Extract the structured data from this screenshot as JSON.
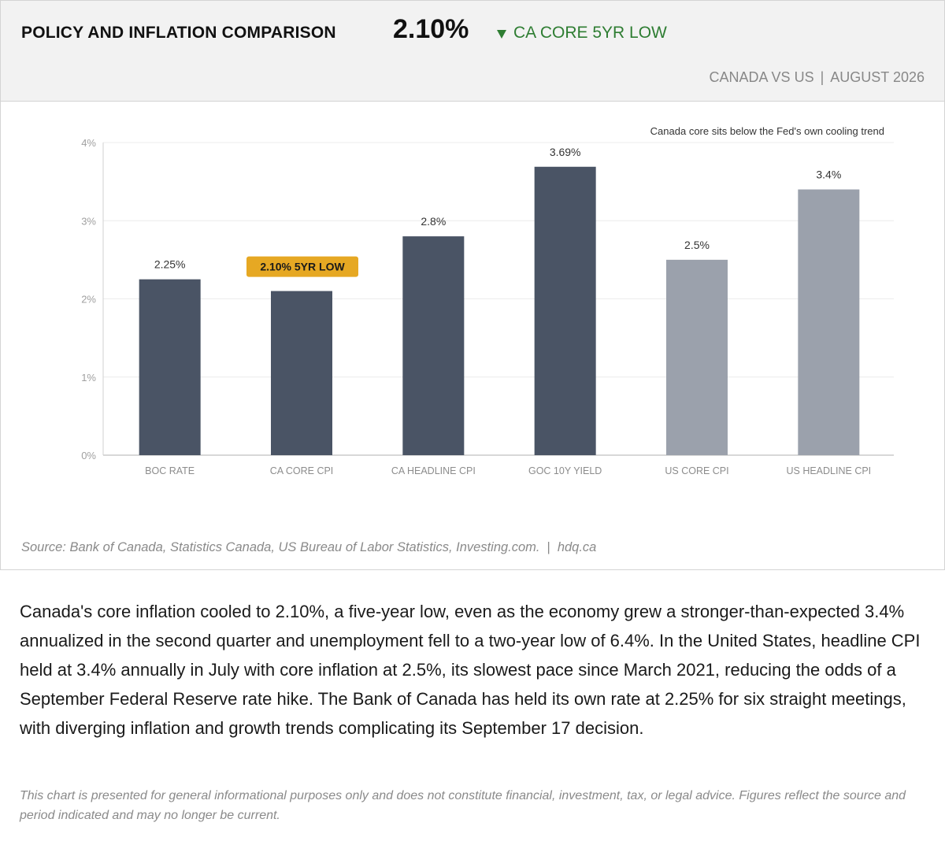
{
  "header": {
    "title": "POLICY AND INFLATION COMPARISON",
    "headline_value": "2.10%",
    "change_label": "CA CORE 5YR LOW",
    "change_icon": "down-arrow-icon",
    "change_color": "#2e7d32",
    "subtitle_left": "CANADA VS US",
    "subtitle_separator": "|",
    "subtitle_right": "AUGUST 2026"
  },
  "chart_data": {
    "type": "bar",
    "title": "",
    "xlabel": "",
    "ylabel": "",
    "categories": [
      "BOC RATE",
      "CA CORE CPI",
      "CA HEADLINE CPI",
      "GOC 10Y YIELD",
      "US CORE CPI",
      "US HEADLINE CPI"
    ],
    "values": [
      2.25,
      2.1,
      2.8,
      3.69,
      2.5,
      3.4
    ],
    "value_labels": [
      "2.25%",
      "",
      "2.8%",
      "3.69%",
      "2.5%",
      "3.4%"
    ],
    "bar_colors": [
      "#4a5465",
      "#4a5465",
      "#4a5465",
      "#4a5465",
      "#9ba1ac",
      "#9ba1ac"
    ],
    "ylim": [
      0,
      4
    ],
    "yticks": [
      0,
      1,
      2,
      3,
      4
    ],
    "ytick_labels": [
      "0%",
      "1%",
      "2%",
      "3%",
      "4%"
    ],
    "grid": true,
    "annotation": "Canada core sits below the Fed's own cooling trend",
    "highlight": {
      "category_index": 1,
      "label": "2.10% 5YR LOW",
      "color": "#e6a823"
    }
  },
  "source": {
    "text": "Source: Bank of Canada, Statistics Canada, US Bureau of Labor Statistics, Investing.com.",
    "separator": "|",
    "site": "hdq.ca"
  },
  "body_text": "Canada's core inflation cooled to 2.10%, a five-year low, even as the economy grew a stronger-than-expected 3.4% annualized in the second quarter and unemployment fell to a two-year low of 6.4%. In the United States, headline CPI held at 3.4% annually in July with core inflation at 2.5%, its slowest pace since March 2021, reducing the odds of a September Federal Reserve rate hike. The Bank of Canada has held its own rate at 2.25% for six straight meetings, with diverging inflation and growth trends complicating its September 17 decision.",
  "disclaimer": "This chart is presented for general informational purposes only and does not constitute financial, investment, tax, or legal advice. Figures reflect the source and period indicated and may no longer be current."
}
